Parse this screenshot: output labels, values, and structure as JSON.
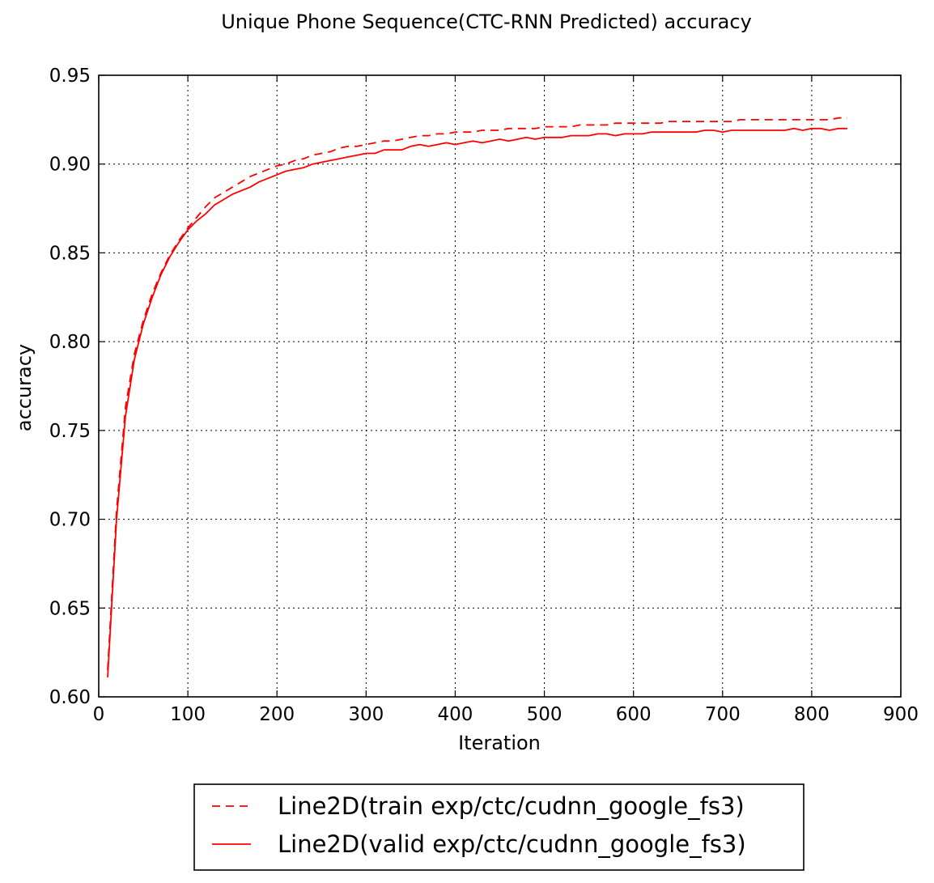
{
  "chart_data": {
    "type": "line",
    "title": "Unique Phone Sequence(CTC-RNN Predicted) accuracy",
    "xlabel": "Iteration",
    "ylabel": "accuracy",
    "xlim": [
      0,
      900
    ],
    "ylim": [
      0.6,
      0.95
    ],
    "xticks": [
      0,
      100,
      200,
      300,
      400,
      500,
      600,
      700,
      800,
      900
    ],
    "yticks": [
      0.6,
      0.65,
      0.7,
      0.75,
      0.8,
      0.85,
      0.9,
      0.95
    ],
    "xtick_labels": [
      "0",
      "100",
      "200",
      "300",
      "400",
      "500",
      "600",
      "700",
      "800",
      "900"
    ],
    "ytick_labels": [
      "0.60",
      "0.65",
      "0.70",
      "0.75",
      "0.80",
      "0.85",
      "0.90",
      "0.95"
    ],
    "grid": true,
    "legend": "below",
    "series": [
      {
        "name": "Line2D(train exp/ctc/cudnn_google_fs3)",
        "color": "#ff0000",
        "style": "dashed",
        "x": [
          10,
          20,
          30,
          40,
          50,
          60,
          70,
          80,
          90,
          100,
          110,
          120,
          130,
          140,
          150,
          160,
          170,
          180,
          190,
          200,
          210,
          220,
          230,
          240,
          250,
          260,
          270,
          280,
          290,
          300,
          310,
          320,
          330,
          340,
          350,
          360,
          370,
          380,
          390,
          400,
          410,
          420,
          430,
          440,
          450,
          460,
          470,
          480,
          490,
          500,
          510,
          520,
          530,
          540,
          550,
          560,
          570,
          580,
          590,
          600,
          610,
          620,
          630,
          640,
          650,
          660,
          670,
          680,
          690,
          700,
          710,
          720,
          730,
          740,
          750,
          760,
          770,
          780,
          790,
          800,
          810,
          820,
          830,
          840
        ],
        "y": [
          0.615,
          0.705,
          0.763,
          0.793,
          0.812,
          0.827,
          0.839,
          0.849,
          0.857,
          0.864,
          0.87,
          0.876,
          0.881,
          0.884,
          0.887,
          0.89,
          0.893,
          0.895,
          0.897,
          0.899,
          0.9,
          0.902,
          0.903,
          0.905,
          0.906,
          0.907,
          0.909,
          0.91,
          0.91,
          0.911,
          0.912,
          0.913,
          0.913,
          0.914,
          0.915,
          0.916,
          0.916,
          0.917,
          0.917,
          0.918,
          0.918,
          0.918,
          0.919,
          0.919,
          0.919,
          0.92,
          0.92,
          0.92,
          0.92,
          0.921,
          0.921,
          0.921,
          0.921,
          0.922,
          0.922,
          0.922,
          0.922,
          0.923,
          0.923,
          0.923,
          0.923,
          0.923,
          0.923,
          0.924,
          0.924,
          0.924,
          0.924,
          0.924,
          0.924,
          0.924,
          0.924,
          0.925,
          0.925,
          0.925,
          0.925,
          0.925,
          0.925,
          0.925,
          0.925,
          0.925,
          0.925,
          0.925,
          0.926,
          0.926
        ]
      },
      {
        "name": "Line2D(valid exp/ctc/cudnn_google_fs3)",
        "color": "#ff0000",
        "style": "solid",
        "x": [
          10,
          20,
          30,
          40,
          50,
          60,
          70,
          80,
          90,
          100,
          110,
          120,
          130,
          140,
          150,
          160,
          170,
          180,
          190,
          200,
          210,
          220,
          230,
          240,
          250,
          260,
          270,
          280,
          290,
          300,
          310,
          320,
          330,
          340,
          350,
          360,
          370,
          380,
          390,
          400,
          410,
          420,
          430,
          440,
          450,
          460,
          470,
          480,
          490,
          500,
          510,
          520,
          530,
          540,
          550,
          560,
          570,
          580,
          590,
          600,
          610,
          620,
          630,
          640,
          650,
          660,
          670,
          680,
          690,
          700,
          710,
          720,
          730,
          740,
          750,
          760,
          770,
          780,
          790,
          800,
          810,
          820,
          830,
          840
        ],
        "y": [
          0.611,
          0.7,
          0.758,
          0.79,
          0.81,
          0.825,
          0.838,
          0.848,
          0.856,
          0.863,
          0.868,
          0.872,
          0.877,
          0.88,
          0.883,
          0.885,
          0.887,
          0.89,
          0.892,
          0.894,
          0.896,
          0.897,
          0.898,
          0.9,
          0.901,
          0.902,
          0.903,
          0.904,
          0.905,
          0.906,
          0.906,
          0.908,
          0.908,
          0.908,
          0.91,
          0.911,
          0.91,
          0.911,
          0.912,
          0.911,
          0.912,
          0.913,
          0.912,
          0.913,
          0.914,
          0.913,
          0.914,
          0.915,
          0.914,
          0.915,
          0.915,
          0.915,
          0.916,
          0.916,
          0.916,
          0.917,
          0.917,
          0.916,
          0.917,
          0.917,
          0.917,
          0.918,
          0.918,
          0.918,
          0.918,
          0.918,
          0.918,
          0.919,
          0.919,
          0.918,
          0.919,
          0.919,
          0.919,
          0.919,
          0.919,
          0.919,
          0.919,
          0.92,
          0.919,
          0.92,
          0.92,
          0.919,
          0.92,
          0.92
        ]
      }
    ]
  }
}
